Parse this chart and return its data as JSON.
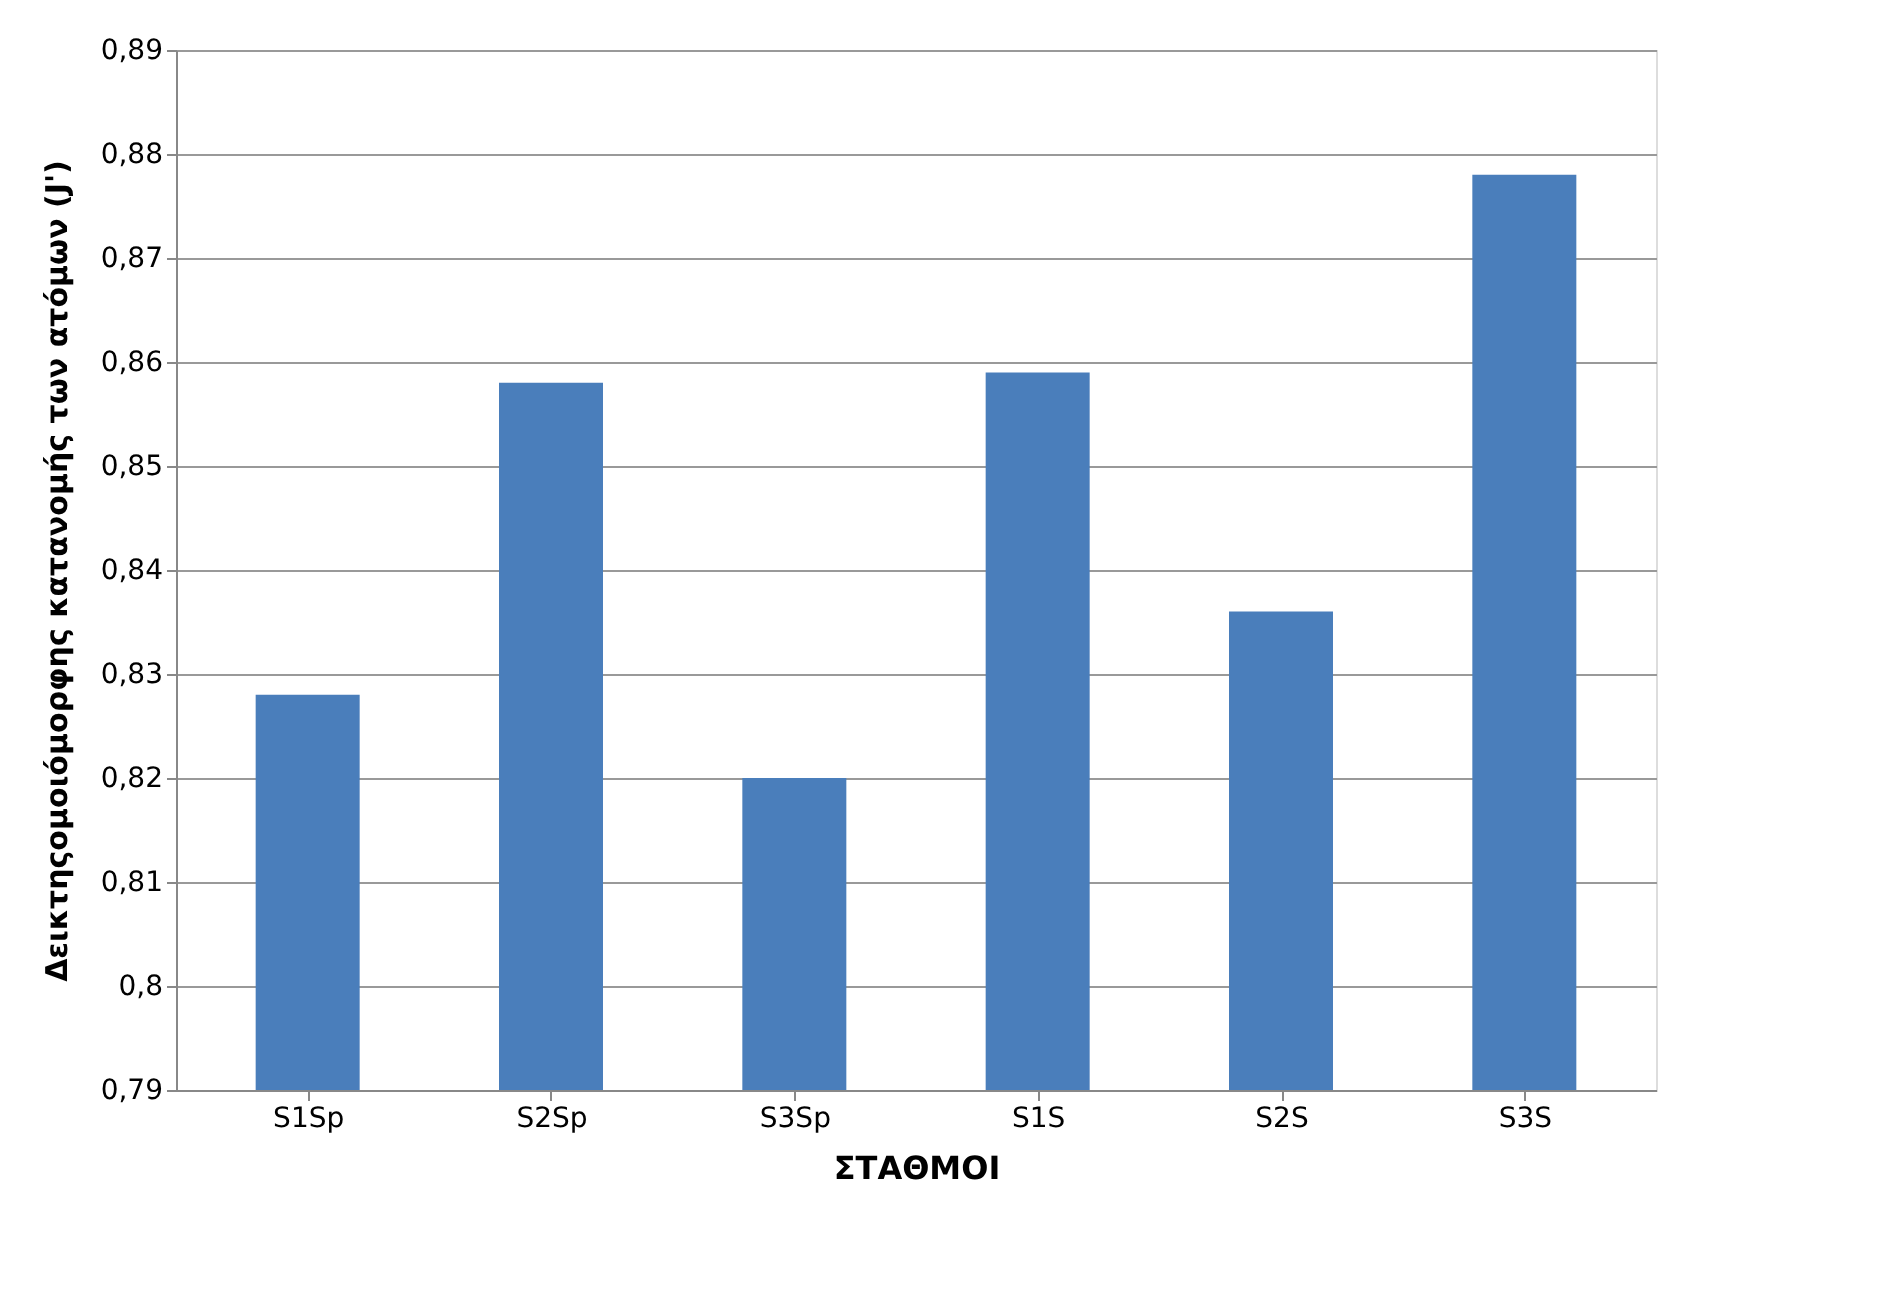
{
  "chart_data": {
    "type": "bar",
    "xlabel": "ΣΤΑΘΜΟΙ",
    "ylabel": "Δεικτηςομοιόμορφης κατανομής των ατόμων (J')",
    "categories": [
      "S1Sp",
      "S2Sp",
      "S3Sp",
      "S1S",
      "S2S",
      "S3S"
    ],
    "values": [
      0.828,
      0.858,
      0.82,
      0.859,
      0.836,
      0.878
    ],
    "color": "#4a7ebb",
    "ylim": [
      0.79,
      0.89
    ],
    "yticks": [
      {
        "value": 0.79,
        "label": "0,79"
      },
      {
        "value": 0.8,
        "label": "0,8"
      },
      {
        "value": 0.81,
        "label": "0,81"
      },
      {
        "value": 0.82,
        "label": "0,82"
      },
      {
        "value": 0.83,
        "label": "0,83"
      },
      {
        "value": 0.84,
        "label": "0,84"
      },
      {
        "value": 0.85,
        "label": "0,85"
      },
      {
        "value": 0.86,
        "label": "0,86"
      },
      {
        "value": 0.87,
        "label": "0,87"
      },
      {
        "value": 0.88,
        "label": "0,88"
      },
      {
        "value": 0.89,
        "label": "0,89"
      }
    ],
    "grid": "y"
  }
}
